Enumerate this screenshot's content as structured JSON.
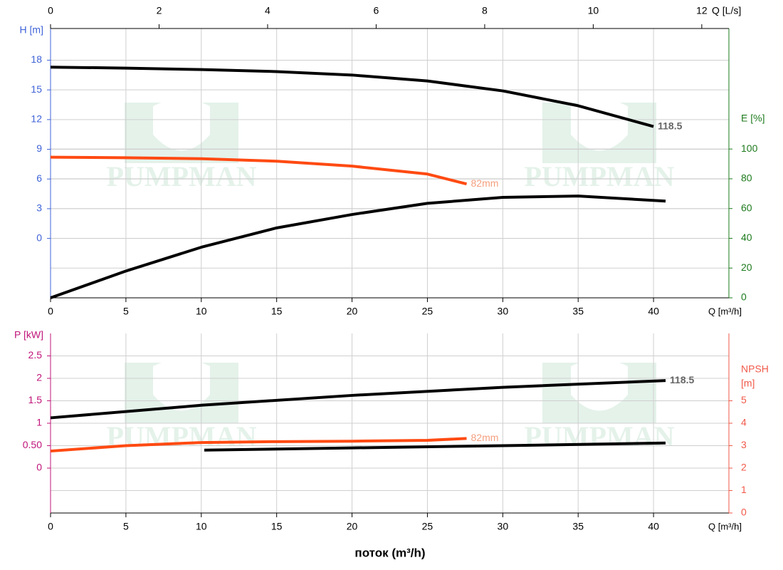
{
  "chart_data": [
    {
      "type": "line",
      "xlabel": "Q [m³/h]",
      "x2label": "Q [L/s]",
      "ylabel": "H [m]",
      "y2label": [
        "E [%]"
      ],
      "ycolor": "#3f63d8",
      "y2color": "#1e7b1e",
      "watermark": "PUMPMAN",
      "xlim": [
        0,
        45
      ],
      "xticks": [
        0,
        5,
        10,
        15,
        20,
        25,
        30,
        35,
        40
      ],
      "x2lim": [
        0,
        12.5
      ],
      "x2ticks": [
        0,
        2,
        4,
        6,
        8,
        10,
        12
      ],
      "ylim": [
        -6,
        21.2
      ],
      "yticks": [
        0,
        3,
        6,
        9,
        12,
        15,
        18
      ],
      "y2lim": [
        0,
        181
      ],
      "y2ticks": [
        0,
        20,
        40,
        60,
        80,
        100
      ],
      "grid": true,
      "series": [
        {
          "name": "118.5",
          "color": "#000000",
          "label_color": "#666666",
          "x": [
            0,
            5,
            10,
            15,
            20,
            25,
            30,
            35,
            40
          ],
          "values": [
            17.3,
            17.2,
            17.05,
            16.85,
            16.5,
            15.9,
            14.9,
            13.4,
            11.3
          ]
        },
        {
          "name": "82mm",
          "color": "#ff4a12",
          "label_color": "#f5a080",
          "x": [
            0,
            5,
            10,
            15,
            20,
            25,
            27.6
          ],
          "values": [
            8.2,
            8.15,
            8.05,
            7.8,
            7.3,
            6.5,
            5.5
          ]
        },
        {
          "color": "#000000",
          "axis": "y2",
          "x": [
            0,
            5,
            10,
            15,
            20,
            25,
            30,
            35,
            40.8
          ],
          "values": [
            0,
            18,
            34,
            47,
            56,
            63.5,
            67.5,
            68.4,
            65
          ]
        }
      ]
    },
    {
      "type": "line",
      "xlabel": "Q [m³/h]",
      "xtitle": "поток (m³/h)",
      "ylabel": "P [kW]",
      "y2label": [
        "NPSH",
        "[m]"
      ],
      "ycolor": "#c0147a",
      "y2color": "#f05a4a",
      "watermark": "PUMPMAN",
      "xlim": [
        0,
        45
      ],
      "xticks": [
        0,
        5,
        10,
        15,
        20,
        25,
        30,
        35,
        40
      ],
      "ylim": [
        -1,
        3
      ],
      "yticks": [
        0,
        {
          "value": 0.5,
          "label": "0.50"
        },
        1,
        1.5,
        2,
        2.5
      ],
      "y2lim": [
        0,
        8
      ],
      "y2ticks": [
        0,
        1,
        2,
        3,
        4,
        5
      ],
      "grid": true,
      "series": [
        {
          "name": "118.5",
          "color": "#000000",
          "label_color": "#666666",
          "x": [
            0,
            10,
            20,
            30,
            40.8
          ],
          "values": [
            1.12,
            1.4,
            1.62,
            1.8,
            1.95
          ]
        },
        {
          "name": "82mm",
          "color": "#ff4a12",
          "label_color": "#f5a080",
          "x": [
            0,
            5,
            10,
            15,
            20,
            25,
            27.6
          ],
          "values": [
            0.38,
            0.5,
            0.57,
            0.59,
            0.6,
            0.62,
            0.66
          ]
        },
        {
          "color": "#000000",
          "axis": "y2",
          "x": [
            10.2,
            20,
            30,
            40.8
          ],
          "values": [
            2.8,
            2.9,
            3.0,
            3.12
          ]
        }
      ]
    }
  ]
}
